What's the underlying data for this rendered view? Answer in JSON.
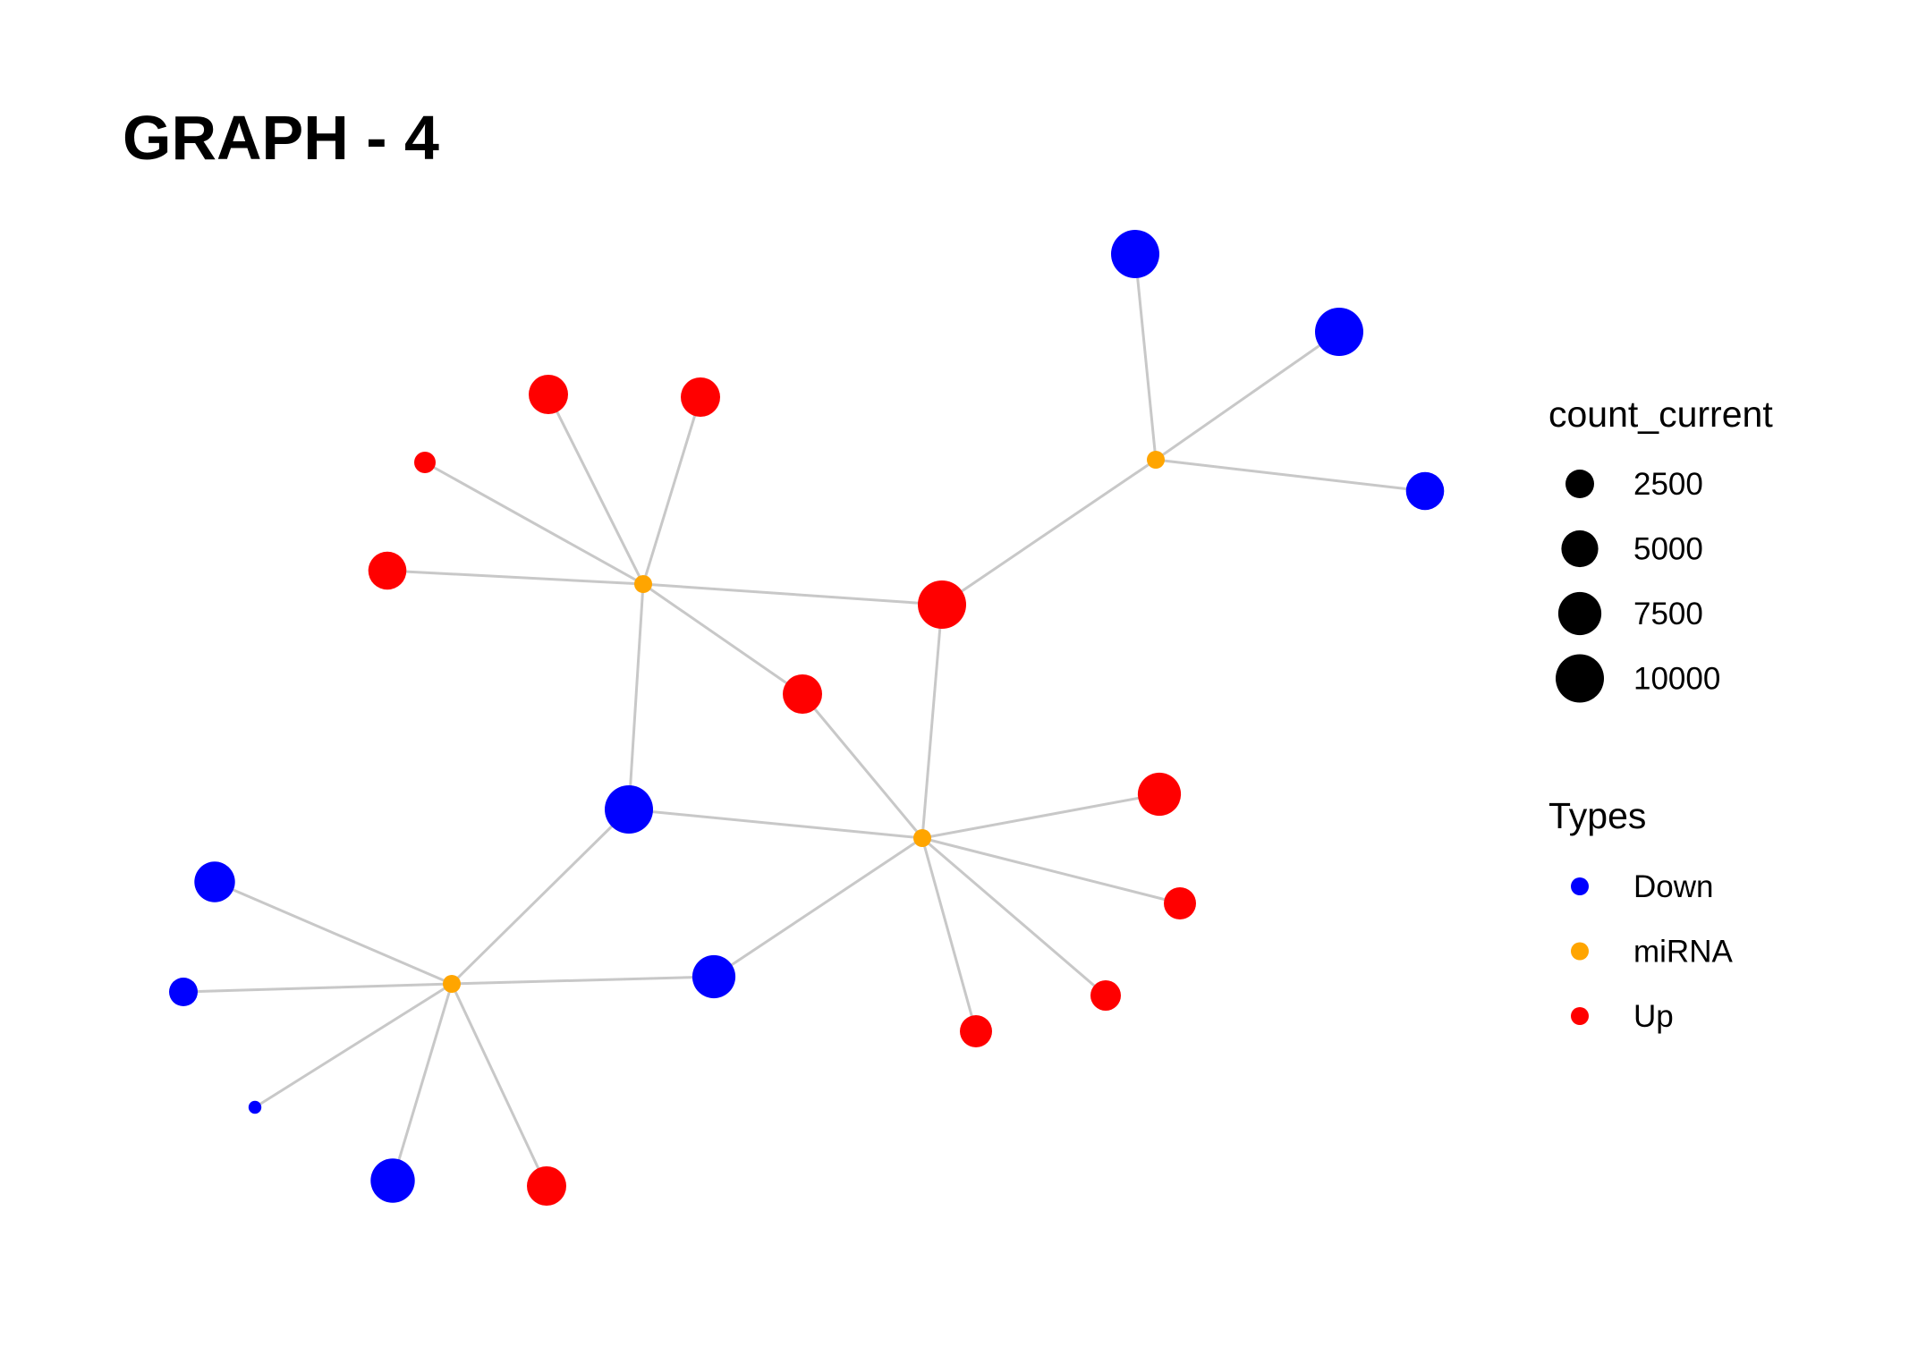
{
  "title": "GRAPH - 4",
  "colors": {
    "Down": "#0000ff",
    "miRNA": "#ffa500",
    "Up": "#ff0000",
    "edge": "#c8c8c8",
    "size_key": "#000000"
  },
  "legend": {
    "size": {
      "title": "count_current",
      "items": [
        {
          "label": "2500",
          "value": 2500
        },
        {
          "label": "5000",
          "value": 5000
        },
        {
          "label": "7500",
          "value": 7500
        },
        {
          "label": "10000",
          "value": 10000
        }
      ]
    },
    "types": {
      "title": "Types",
      "items": [
        {
          "label": "Down",
          "type": "Down"
        },
        {
          "label": "miRNA",
          "type": "miRNA"
        },
        {
          "label": "Up",
          "type": "Up"
        }
      ]
    }
  },
  "nodes": [
    {
      "id": "m1",
      "type": "miRNA",
      "count": 1000
    },
    {
      "id": "m2",
      "type": "miRNA",
      "count": 1000
    },
    {
      "id": "m3",
      "type": "miRNA",
      "count": 1000
    },
    {
      "id": "m4",
      "type": "miRNA",
      "count": 1000
    },
    {
      "id": "u1",
      "type": "Up",
      "count": 10000
    },
    {
      "id": "u2",
      "type": "Up",
      "count": 6000
    },
    {
      "id": "u3",
      "type": "Up",
      "count": 6000
    },
    {
      "id": "u4",
      "type": "Up",
      "count": 5500
    },
    {
      "id": "u5",
      "type": "Up",
      "count": 1000
    },
    {
      "id": "u6",
      "type": "Up",
      "count": 6000
    },
    {
      "id": "u7",
      "type": "Up",
      "count": 7500
    },
    {
      "id": "u8",
      "type": "Up",
      "count": 3500
    },
    {
      "id": "u9",
      "type": "Up",
      "count": 3000
    },
    {
      "id": "u10",
      "type": "Up",
      "count": 3500
    },
    {
      "id": "u11",
      "type": "Up",
      "count": 6000
    },
    {
      "id": "d1",
      "type": "Down",
      "count": 10000
    },
    {
      "id": "d2",
      "type": "Down",
      "count": 10000
    },
    {
      "id": "d3",
      "type": "Down",
      "count": 5500
    },
    {
      "id": "d4",
      "type": "Down",
      "count": 10000
    },
    {
      "id": "d5",
      "type": "Down",
      "count": 6500
    },
    {
      "id": "d6",
      "type": "Down",
      "count": 7500
    },
    {
      "id": "d7",
      "type": "Down",
      "count": 2500
    },
    {
      "id": "d8",
      "type": "Down",
      "count": 100
    },
    {
      "id": "d9",
      "type": "Down",
      "count": 8000
    }
  ],
  "edges": [
    [
      "m1",
      "u2"
    ],
    [
      "m1",
      "u3"
    ],
    [
      "m1",
      "u5"
    ],
    [
      "m1",
      "u4"
    ],
    [
      "m1",
      "u1"
    ],
    [
      "m1",
      "u6"
    ],
    [
      "m1",
      "d4"
    ],
    [
      "m2",
      "d1"
    ],
    [
      "m2",
      "d2"
    ],
    [
      "m2",
      "d3"
    ],
    [
      "m2",
      "u1"
    ],
    [
      "m3",
      "u1"
    ],
    [
      "m3",
      "u6"
    ],
    [
      "m3",
      "d4"
    ],
    [
      "m3",
      "u7"
    ],
    [
      "m3",
      "u8"
    ],
    [
      "m3",
      "u9"
    ],
    [
      "m3",
      "u10"
    ],
    [
      "m3",
      "d6"
    ],
    [
      "m4",
      "d4"
    ],
    [
      "m4",
      "d5"
    ],
    [
      "m4",
      "d7"
    ],
    [
      "m4",
      "d6"
    ],
    [
      "m4",
      "d8"
    ],
    [
      "m4",
      "d9"
    ],
    [
      "m4",
      "u11"
    ]
  ]
}
